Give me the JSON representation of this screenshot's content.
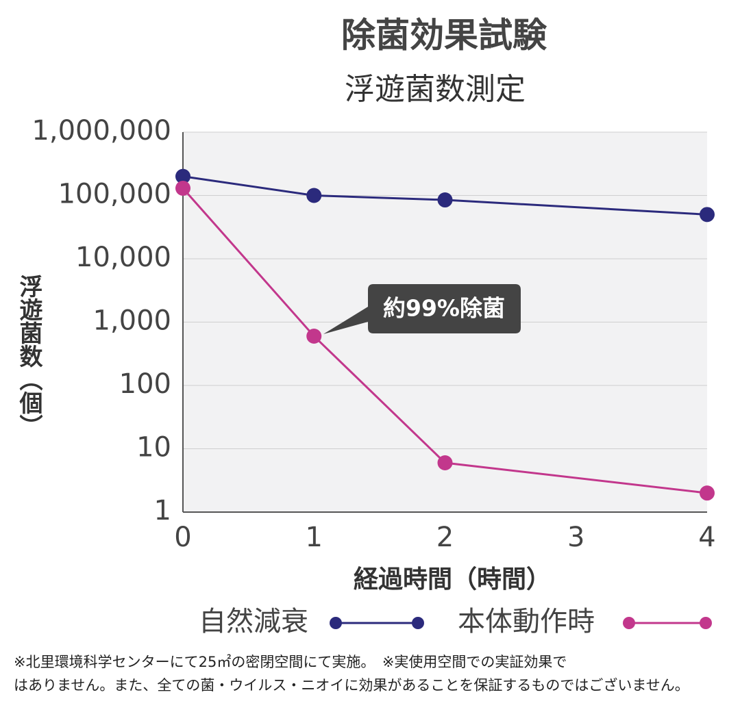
{
  "chart_data": {
    "type": "line",
    "title": "除菌効果試験",
    "subtitle": "浮遊菌数測定",
    "x_label": "経過時間（時間）",
    "y_label": "浮遊菌数（個）",
    "x": [
      0,
      1,
      2,
      4
    ],
    "series": [
      {
        "name": "自然減衰",
        "color": "#2b2a7c",
        "values": [
          200000,
          100000,
          85000,
          50000
        ]
      },
      {
        "name": "本体動作時",
        "color": "#c2378c",
        "values": [
          130000,
          600,
          6,
          2
        ]
      }
    ],
    "yscale": "log",
    "ylim": [
      1,
      1000000
    ],
    "yticks": [
      1,
      10,
      100,
      {
        "value": 1000,
        "label": "1,000"
      },
      {
        "value": 10000,
        "label": "10,000"
      },
      {
        "value": 100000,
        "label": "100,000"
      },
      {
        "value": 1000000,
        "label": "1,000,000"
      }
    ],
    "xlim": [
      0,
      4
    ],
    "xticks": [
      0,
      1,
      2,
      3,
      4
    ],
    "grid": true,
    "annotation": "約99%除菌",
    "footnote": [
      "※北里環境科学センターにて25㎡の密閉空間にて実施。　※実使用空間での実証効果で",
      "はありません。また、全ての菌・ウイルス・ニオイに効果があることを保証するものではございません。"
    ]
  }
}
